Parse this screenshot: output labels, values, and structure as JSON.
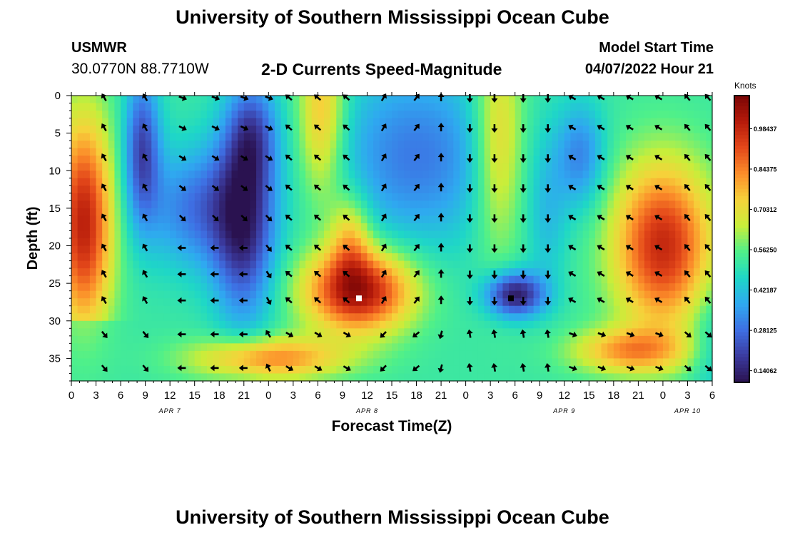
{
  "header": {
    "title": "University of Southern Mississippi Ocean Cube",
    "station": "USMWR",
    "coordinates": "30.0770N  88.7710W",
    "subtitle": "2-D Currents Speed-Magnitude",
    "model_start_label": "Model Start Time",
    "model_start_value": "04/07/2022 Hour 21"
  },
  "footer": {
    "title": "University of Southern Mississippi Ocean Cube"
  },
  "colors": {
    "background": "#ffffff",
    "arrow": "#000000",
    "colormap": [
      "#2a1250",
      "#3b3a9e",
      "#3e6fe3",
      "#2fa8f0",
      "#1ed7c7",
      "#4ff08a",
      "#c8ee3a",
      "#f6d23a",
      "#fc8e2a",
      "#e4481a",
      "#b51a0a",
      "#7a0606"
    ]
  },
  "chart_data": {
    "type": "heatmap",
    "title": "2-D Currents Speed-Magnitude",
    "xlabel": "Forecast Time(Z)",
    "ylabel": "Depth (ft)",
    "x_unit": "hours since 00Z Apr 7",
    "x_ticks": [
      0,
      3,
      6,
      9,
      12,
      15,
      18,
      21,
      24,
      27,
      30,
      33,
      36,
      39,
      42,
      45,
      48,
      51,
      54,
      57,
      60,
      63,
      66,
      69,
      72,
      75,
      78
    ],
    "x_tick_labels": [
      "0",
      "3",
      "6",
      "9",
      "12",
      "15",
      "18",
      "21",
      "0",
      "3",
      "6",
      "9",
      "12",
      "15",
      "18",
      "21",
      "0",
      "3",
      "6",
      "9",
      "12",
      "15",
      "18",
      "21",
      "0",
      "3",
      "6"
    ],
    "day_labels": [
      {
        "label": "APR 7",
        "hour": 12
      },
      {
        "label": "APR 8",
        "hour": 36
      },
      {
        "label": "APR 9",
        "hour": 60
      },
      {
        "label": "APR 10",
        "hour": 75
      }
    ],
    "xlim": [
      0,
      78
    ],
    "ylim": [
      0,
      38
    ],
    "y_ticks": [
      0,
      5,
      10,
      15,
      20,
      25,
      30,
      35
    ],
    "colorbar": {
      "title": "Knots",
      "tick_labels": [
        "0.98437",
        "0.84375",
        "0.70312",
        "0.56250",
        "0.42187",
        "0.28125",
        "0.14062"
      ],
      "tick_values": [
        0.98437,
        0.84375,
        0.70312,
        0.5625,
        0.42187,
        0.28125,
        0.14062
      ],
      "range": [
        0.1,
        1.1
      ]
    },
    "field_features": [
      {
        "note": "strong current near surface-to-bottom",
        "hour": 1.5,
        "depth": 17,
        "speed": 0.95
      },
      {
        "note": "weak current core",
        "hour": 8.6,
        "depth": 8,
        "speed": 0.15
      },
      {
        "note": "weak current core",
        "hour": 21,
        "depth": 20,
        "speed": 0.17
      },
      {
        "note": "strong mid-depth core",
        "hour": 36,
        "depth": 27,
        "speed": 1.02
      },
      {
        "note": "weak mid-depth core",
        "hour": 54,
        "depth": 27,
        "speed": 0.14
      },
      {
        "note": "strong upper core",
        "hour": 72,
        "depth": 18,
        "speed": 0.98
      }
    ],
    "vector_hours": [
      4,
      9,
      13.5,
      17.5,
      21,
      24,
      26.5,
      30,
      33.5,
      38,
      42,
      45,
      48.5,
      51.5,
      55,
      58,
      61,
      64.5,
      68,
      71.5,
      75,
      77.5
    ],
    "vector_depths": [
      0,
      4,
      8,
      12,
      16,
      20,
      23.5,
      27,
      31.5,
      36
    ]
  },
  "markers": [
    {
      "name": "white-marker",
      "hour": 35,
      "depth": 27,
      "color": "#ffffff"
    },
    {
      "name": "black-marker",
      "hour": 53.5,
      "depth": 27,
      "color": "#000000"
    }
  ]
}
